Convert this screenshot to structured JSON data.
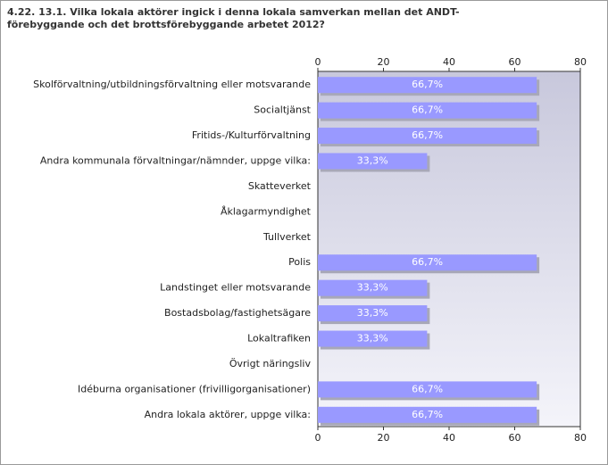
{
  "chart_data": {
    "type": "bar",
    "orientation": "horizontal",
    "title": "4.22. 13.1. Vilka lokala aktörer ingick i denna lokala samverkan mellan det ANDT-förebyggande och det brottsförebyggande arbetet 2012?",
    "categories": [
      "Skolförvaltning/utbildningsförvaltning eller motsvarande",
      "Socialtjänst",
      "Fritids-/Kulturförvaltning",
      "Andra kommunala förvaltningar/nämnder, uppge vilka:",
      "Skatteverket",
      "Åklagarmyndighet",
      "Tullverket",
      "Polis",
      "Landstinget eller motsvarande",
      "Bostadsbolag/fastighetsägare",
      "Lokaltrafiken",
      "Övrigt näringsliv",
      "Idéburna organisationer (frivilligorganisationer)",
      "Andra lokala aktörer, uppge vilka:"
    ],
    "values": [
      66.7,
      66.7,
      66.7,
      33.3,
      0,
      0,
      0,
      66.7,
      33.3,
      33.3,
      33.3,
      0,
      66.7,
      66.7
    ],
    "value_labels": [
      "66,7%",
      "66,7%",
      "66,7%",
      "33,3%",
      null,
      null,
      null,
      "66,7%",
      "33,3%",
      "33,3%",
      "33,3%",
      null,
      "66,7%",
      "66,7%"
    ],
    "color": "#9999ff",
    "xlim": [
      0,
      80
    ],
    "xticks": [
      0,
      20,
      40,
      60,
      80
    ],
    "grid": false
  }
}
